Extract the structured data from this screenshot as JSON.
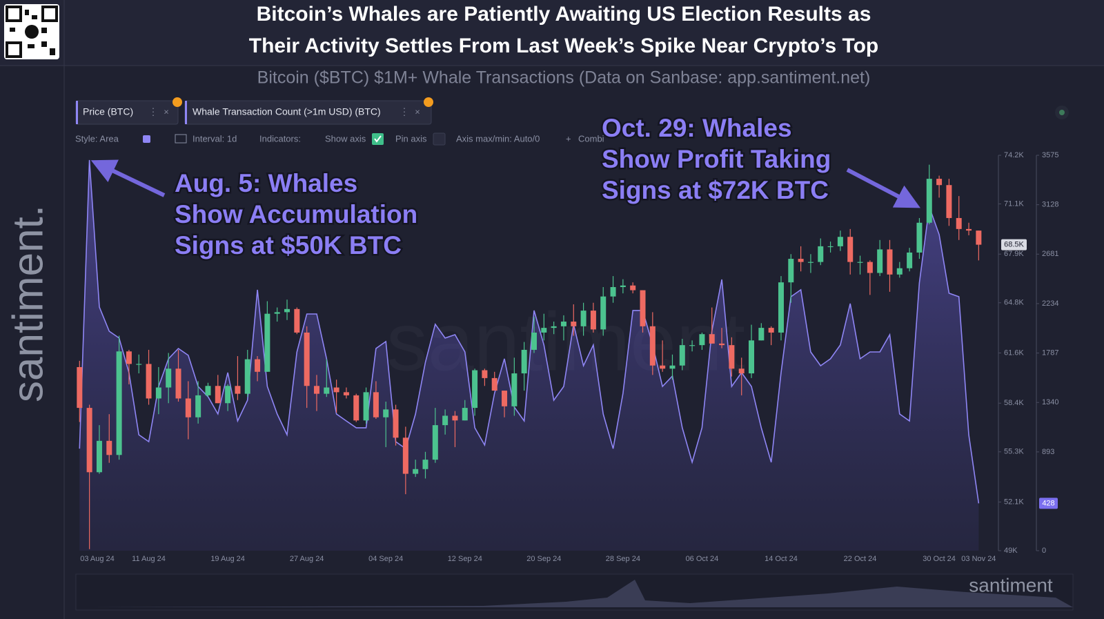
{
  "header": {
    "title_lines": [
      "Bitcoin’s Whales are Patiently Awaiting US Election Results as",
      "Their Activity Settles From Last Week’s Spike Near Crypto’s Top"
    ],
    "subtitle": "Bitcoin ($BTC) $1M+ Whale Transactions (Data on Sanbase: app.santiment.net)"
  },
  "sidebar_logo": "santiment.",
  "watermark": "santiment",
  "footer_logo": "santiment",
  "toolbar": {
    "options": [
      "Style: Area",
      "Interval: 1d",
      "Indicators:",
      "Show axis",
      "Pin axis",
      "Axis max/min: Auto/0",
      "Combi"
    ]
  },
  "chart_data": {
    "type": "combo",
    "annotations": [
      {
        "lines": [
          "Aug. 5: Whales",
          "Show Accumulation",
          "Signs at $50K BTC"
        ]
      },
      {
        "lines": [
          "Oct. 29: Whales",
          "Show Profit Taking",
          "Signs at $72K BTC"
        ]
      }
    ],
    "x": [
      "2024-08-04",
      "2024-08-05",
      "2024-08-06",
      "2024-08-07",
      "2024-08-08",
      "2024-08-09",
      "2024-08-10",
      "2024-08-11",
      "2024-08-12",
      "2024-08-13",
      "2024-08-14",
      "2024-08-15",
      "2024-08-16",
      "2024-08-17",
      "2024-08-18",
      "2024-08-19",
      "2024-08-20",
      "2024-08-21",
      "2024-08-22",
      "2024-08-23",
      "2024-08-24",
      "2024-08-25",
      "2024-08-26",
      "2024-08-27",
      "2024-08-28",
      "2024-08-29",
      "2024-08-30",
      "2024-08-31",
      "2024-09-01",
      "2024-09-02",
      "2024-09-03",
      "2024-09-04",
      "2024-09-05",
      "2024-09-06",
      "2024-09-07",
      "2024-09-08",
      "2024-09-09",
      "2024-09-10",
      "2024-09-11",
      "2024-09-12",
      "2024-09-13",
      "2024-09-14",
      "2024-09-15",
      "2024-09-16",
      "2024-09-17",
      "2024-09-18",
      "2024-09-19",
      "2024-09-20",
      "2024-09-21",
      "2024-09-22",
      "2024-09-23",
      "2024-09-24",
      "2024-09-25",
      "2024-09-26",
      "2024-09-27",
      "2024-09-28",
      "2024-09-29",
      "2024-09-30",
      "2024-10-01",
      "2024-10-02",
      "2024-10-03",
      "2024-10-04",
      "2024-10-05",
      "2024-10-06",
      "2024-10-07",
      "2024-10-08",
      "2024-10-09",
      "2024-10-10",
      "2024-10-11",
      "2024-10-12",
      "2024-10-13",
      "2024-10-14",
      "2024-10-15",
      "2024-10-16",
      "2024-10-17",
      "2024-10-18",
      "2024-10-19",
      "2024-10-20",
      "2024-10-21",
      "2024-10-22",
      "2024-10-23",
      "2024-10-24",
      "2024-10-25",
      "2024-10-26",
      "2024-10-27",
      "2024-10-28",
      "2024-10-29",
      "2024-10-30",
      "2024-10-31",
      "2024-11-01",
      "2024-11-02",
      "2024-11-03"
    ],
    "xlim": [
      "2024-08-03",
      "2024-11-05"
    ],
    "xticks": [
      {
        "value": "2024-08-03",
        "label": "03 Aug 24"
      },
      {
        "value": "2024-08-11",
        "label": "11 Aug 24"
      },
      {
        "value": "2024-08-19",
        "label": "19 Aug 24"
      },
      {
        "value": "2024-08-27",
        "label": "27 Aug 24"
      },
      {
        "value": "2024-09-04",
        "label": "04 Sep 24"
      },
      {
        "value": "2024-09-12",
        "label": "12 Sep 24"
      },
      {
        "value": "2024-09-20",
        "label": "20 Sep 24"
      },
      {
        "value": "2024-09-28",
        "label": "28 Sep 24"
      },
      {
        "value": "2024-10-06",
        "label": "06 Oct 24"
      },
      {
        "value": "2024-10-14",
        "label": "14 Oct 24"
      },
      {
        "value": "2024-10-22",
        "label": "22 Oct 24"
      },
      {
        "value": "2024-10-30",
        "label": "30 Oct 24"
      },
      {
        "value": "2024-11-03",
        "label": "03 Nov 24"
      }
    ],
    "ylim": [
      49000,
      74200
    ],
    "yticks": [
      {
        "value": 49000,
        "label": "49K"
      },
      {
        "value": 52100,
        "label": "52.1K"
      },
      {
        "value": 55300,
        "label": "55.3K"
      },
      {
        "value": 58400,
        "label": "58.4K"
      },
      {
        "value": 61600,
        "label": "61.6K"
      },
      {
        "value": 64800,
        "label": "64.8K"
      },
      {
        "value": 67900,
        "label": "67.9K"
      },
      {
        "value": 71100,
        "label": "71.1K"
      },
      {
        "value": 74200,
        "label": "74.2K"
      }
    ],
    "y2lim": [
      0,
      3575
    ],
    "y2ticks": [
      0,
      893,
      1340,
      1787,
      2234,
      2681,
      3128,
      3575
    ],
    "series": [
      {
        "name": "Price (BTC)",
        "type": "candlestick",
        "axis": "y",
        "up_color": "#4cc38f",
        "down_color": "#ee6a62",
        "last_label": "68.5K",
        "open": [
          60700,
          58100,
          54000,
          56000,
          55100,
          61700,
          60900,
          60900,
          58700,
          59400,
          60600,
          58700,
          57500,
          58900,
          59500,
          58400,
          59500,
          59000,
          61200,
          60400,
          64100,
          64200,
          64400,
          62900,
          59500,
          59000,
          59400,
          59100,
          58900,
          57300,
          59100,
          57500,
          58000,
          56200,
          53900,
          54200,
          54800,
          57000,
          57600,
          57300,
          58100,
          60500,
          60000,
          59200,
          58200,
          60300,
          61800,
          62900,
          63200,
          63300,
          63600,
          63300,
          64300,
          63100,
          65200,
          65800,
          65900,
          65600,
          63300,
          60800,
          60600,
          60800,
          62100,
          62100,
          62800,
          62200,
          62100,
          60600,
          60300,
          62400,
          63200,
          62900,
          66100,
          67600,
          67400,
          67400,
          68400,
          68400,
          69000,
          67400,
          67400,
          66700,
          68200,
          66600,
          67000,
          68000,
          69900,
          72700,
          72300,
          70200,
          69500,
          69400
        ],
        "high": [
          61100,
          58300,
          57000,
          57700,
          62700,
          61800,
          61500,
          61800,
          60700,
          61600,
          61800,
          59800,
          59800,
          59700,
          60200,
          59600,
          61400,
          61800,
          61400,
          64900,
          64500,
          65000,
          64500,
          63300,
          60200,
          61200,
          59900,
          59400,
          59000,
          59400,
          59800,
          58500,
          58300,
          56900,
          54800,
          55300,
          58100,
          58000,
          57900,
          58600,
          60600,
          60600,
          60400,
          59200,
          61300,
          62300,
          63900,
          64100,
          63600,
          64000,
          64700,
          64800,
          64800,
          65800,
          66500,
          66300,
          66100,
          65600,
          64200,
          62400,
          61500,
          62500,
          62400,
          62900,
          64500,
          63200,
          62600,
          61300,
          63400,
          63500,
          63300,
          66500,
          67900,
          68400,
          67900,
          68900,
          68700,
          69400,
          69500,
          67800,
          67500,
          68800,
          68800,
          67400,
          68300,
          70200,
          73600,
          72900,
          72700,
          71600,
          69900,
          69400
        ],
        "low": [
          57200,
          49100,
          53900,
          54600,
          54800,
          59600,
          60300,
          58300,
          57700,
          58400,
          58500,
          56100,
          57100,
          58800,
          58400,
          57900,
          58600,
          58800,
          59800,
          60400,
          63600,
          63700,
          62800,
          58100,
          57900,
          58800,
          57800,
          58700,
          57200,
          57100,
          57400,
          55600,
          55700,
          52600,
          53700,
          53600,
          54600,
          56400,
          55600,
          57300,
          57600,
          59500,
          59200,
          57500,
          57600,
          59200,
          61600,
          62400,
          62800,
          62400,
          62700,
          62700,
          62900,
          62700,
          64800,
          65400,
          65400,
          62900,
          60200,
          60400,
          59900,
          60500,
          61700,
          61800,
          62200,
          61900,
          60100,
          58900,
          60000,
          62400,
          62100,
          62400,
          64800,
          66800,
          66700,
          67200,
          68000,
          68100,
          66600,
          66600,
          65300,
          66500,
          65500,
          66400,
          66800,
          67600,
          69800,
          71500,
          69700,
          68800,
          69100,
          67500
        ],
        "close": [
          58100,
          54000,
          56000,
          55100,
          61700,
          60900,
          60900,
          58700,
          59400,
          60600,
          58700,
          57500,
          58900,
          59500,
          58400,
          59500,
          59000,
          61200,
          60400,
          64100,
          64200,
          64400,
          62900,
          59500,
          59000,
          59400,
          59100,
          58900,
          57300,
          59100,
          57500,
          58000,
          56200,
          53900,
          54200,
          54800,
          57000,
          57600,
          57300,
          58100,
          60500,
          60000,
          59200,
          58200,
          60300,
          61800,
          62900,
          63200,
          63300,
          63600,
          63300,
          64300,
          63100,
          65200,
          65800,
          65900,
          65600,
          63300,
          60800,
          60600,
          60800,
          62100,
          62100,
          62800,
          62200,
          62100,
          60600,
          60300,
          62400,
          63200,
          62900,
          66100,
          67600,
          67400,
          67400,
          68400,
          68400,
          69000,
          67400,
          67400,
          66700,
          68200,
          66600,
          67000,
          68000,
          69900,
          72700,
          72300,
          70200,
          69500,
          69400,
          68500
        ]
      },
      {
        "name": "Whale Transaction Count (>1m USD) (BTC)",
        "type": "area",
        "axis": "y2",
        "color": "#8f86f5",
        "values": [
          923,
          3532,
          2203,
          1984,
          1922,
          1610,
          1048,
          986,
          1485,
          1735,
          1828,
          1766,
          1485,
          1392,
          1236,
          1610,
          1173,
          1360,
          2359,
          1485,
          1236,
          1048,
          1797,
          2140,
          2140,
          1735,
          1236,
          1173,
          1111,
          1111,
          1828,
          1891,
          986,
          923,
          1236,
          1703,
          2047,
          1922,
          1953,
          1797,
          1111,
          955,
          1423,
          1735,
          1298,
          1173,
          2172,
          1860,
          1360,
          1485,
          2047,
          1672,
          1860,
          1236,
          923,
          1423,
          2172,
          2172,
          1860,
          1485,
          1579,
          1111,
          799,
          1111,
          1984,
          2452,
          1485,
          1610,
          1485,
          1111,
          799,
          1610,
          2296,
          2359,
          1797,
          1672,
          1735,
          1860,
          2234,
          1735,
          1797,
          1797,
          1953,
          1236,
          1173,
          2421,
          3108,
          2858,
          2328,
          2296,
          1048,
          428
        ]
      }
    ]
  }
}
